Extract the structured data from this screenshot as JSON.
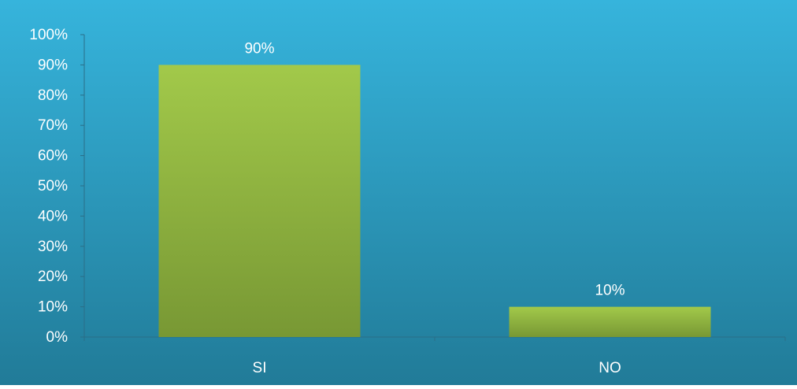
{
  "chart_data": {
    "type": "bar",
    "categories": [
      "SI",
      "NO"
    ],
    "values": [
      90,
      10
    ],
    "value_labels": [
      "90%",
      "10%"
    ],
    "ylim": [
      0,
      100
    ],
    "y_ticks": [
      0,
      10,
      20,
      30,
      40,
      50,
      60,
      70,
      80,
      90,
      100
    ],
    "y_tick_labels": [
      "0%",
      "10%",
      "20%",
      "30%",
      "40%",
      "50%",
      "60%",
      "70%",
      "80%",
      "90%",
      "100%"
    ],
    "title": "",
    "xlabel": "",
    "ylabel": "",
    "grid": false,
    "legend": "none"
  },
  "colors": {
    "background_top": "#36b4dc",
    "background_bottom": "#217b98",
    "bar_top": "#a2c94a",
    "bar_bottom": "#789834",
    "axis": "#2a6e88",
    "text": "#ffffff"
  }
}
